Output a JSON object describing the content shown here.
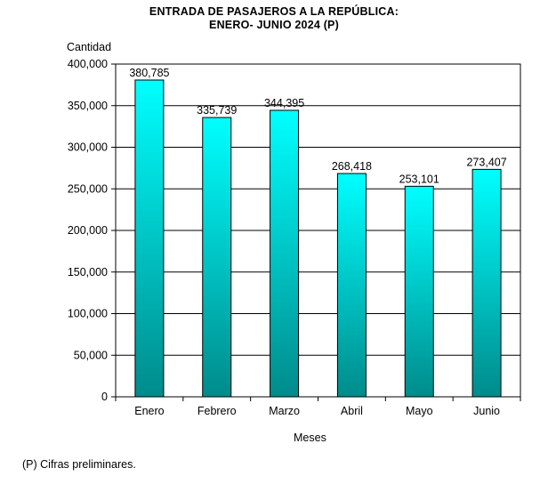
{
  "chart_data": {
    "type": "bar",
    "title": "ENTRADA  DE PASAJEROS  A LA REPÚBLICA:",
    "subtitle": "ENERO-  JUNIO 2024 (P)",
    "ylabel": "Cantidad",
    "xlabel": "Meses",
    "categories": [
      "Enero",
      "Febrero",
      "Marzo",
      "Abril",
      "Mayo",
      "Junio"
    ],
    "values": [
      380785,
      335739,
      344395,
      268418,
      253101,
      273407
    ],
    "value_labels": [
      "380,785",
      "335,739",
      "344,395",
      "268,418",
      "253,101",
      "273,407"
    ],
    "ylim": [
      0,
      400000
    ],
    "yticks": [
      0,
      50000,
      100000,
      150000,
      200000,
      250000,
      300000,
      350000,
      400000
    ],
    "ytick_labels": [
      "0",
      "50,000",
      "100,000",
      "150,000",
      "200,000",
      "250,000",
      "300,000",
      "350,000",
      "400,000"
    ],
    "grid": true,
    "bar_color_top": "#00ffff",
    "bar_color_bottom": "#008b8b",
    "note": "(P) Cifras  preliminares."
  }
}
